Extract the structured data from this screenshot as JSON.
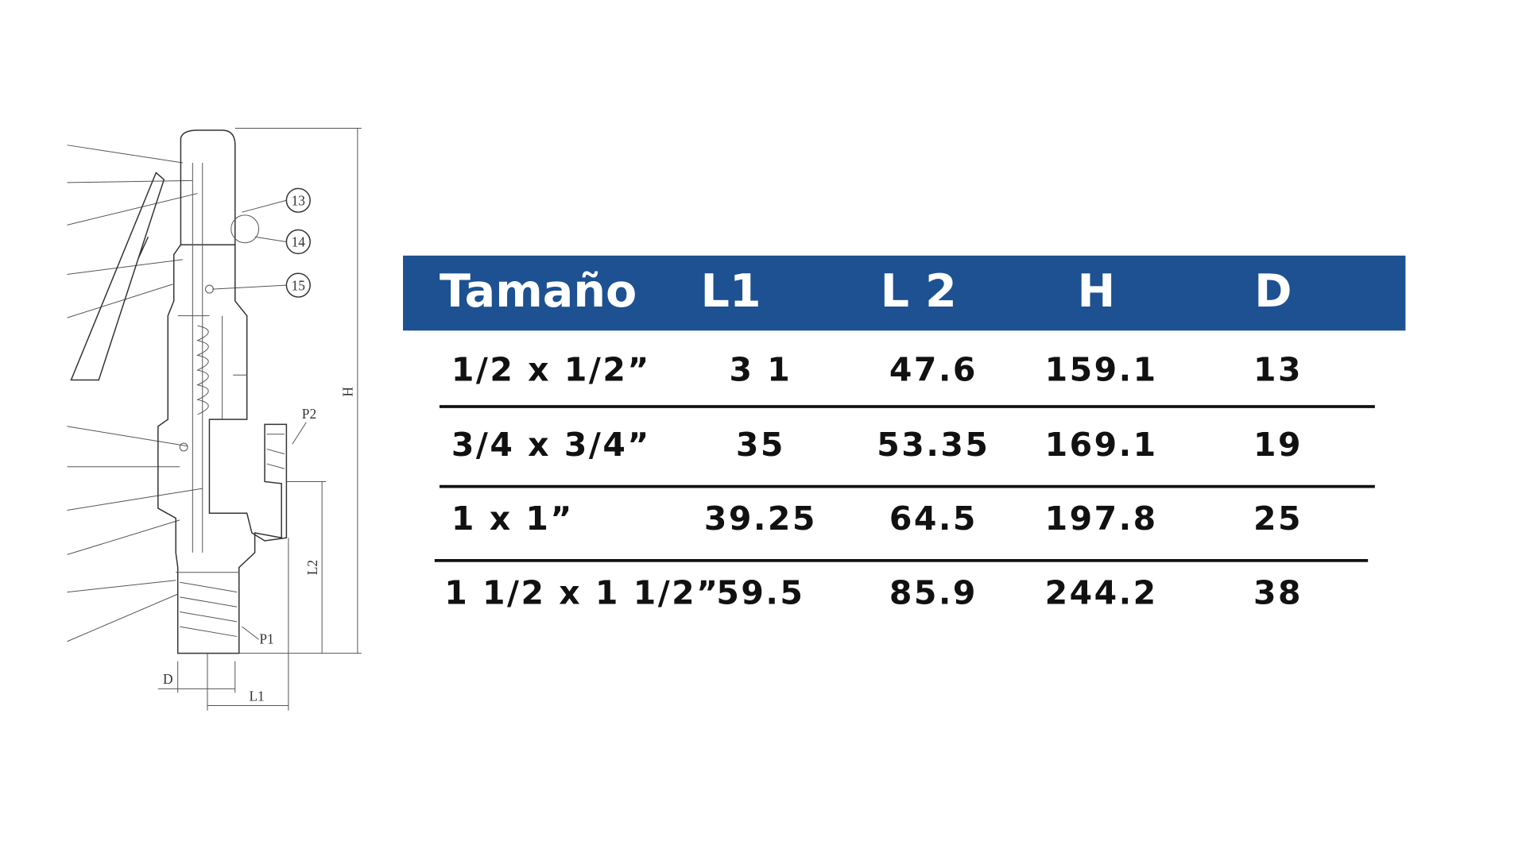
{
  "diagram": {
    "callouts": [
      "13",
      "14",
      "15"
    ],
    "ports": [
      "P2",
      "P1"
    ],
    "dimensions": [
      "H",
      "L2",
      "D",
      "L1"
    ]
  },
  "table": {
    "header": [
      "Tamaño",
      "L1",
      "L 2",
      "H",
      "D"
    ],
    "rows": [
      [
        "1/2  x  1/2”",
        "3 1",
        "47.6",
        "159.1",
        "13"
      ],
      [
        "3/4 x 3/4”",
        "35",
        "53.35",
        "169.1",
        "19"
      ],
      [
        "1     x     1”",
        "39.25",
        "64.5",
        "197.8",
        "25"
      ],
      [
        "1 1/2  x 1 1/2”",
        "59.5",
        "85.9",
        "244.2",
        "38"
      ]
    ]
  }
}
